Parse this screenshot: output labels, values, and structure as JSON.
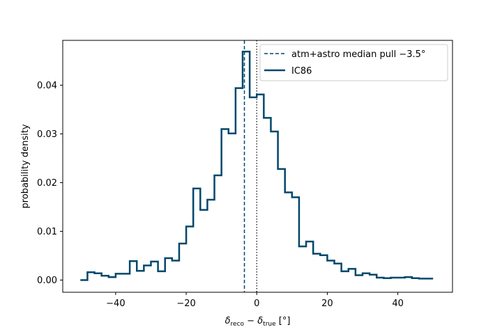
{
  "chart_data": {
    "type": "line",
    "xlabel": "δ_reco − δ_true  [°]",
    "ylabel": "probability density",
    "xlim": [
      -55,
      55.5
    ],
    "ylim": [
      -0.0025,
      0.0492
    ],
    "xticks": [
      -40,
      -20,
      0,
      20,
      40
    ],
    "xtick_labels": [
      "−40",
      "−20",
      "0",
      "20",
      "40"
    ],
    "yticks": [
      0.0,
      0.01,
      0.02,
      0.03,
      0.04
    ],
    "ytick_labels": [
      "0.00",
      "0.01",
      "0.02",
      "0.03",
      "0.04"
    ],
    "grid": false,
    "legend_position": "top-right",
    "bin_edges": [
      -50,
      -48,
      -46,
      -44,
      -42,
      -40,
      -38,
      -36,
      -34,
      -32,
      -30,
      -28,
      -26,
      -24,
      -22,
      -20,
      -18,
      -16,
      -14,
      -12,
      -10,
      -8,
      -6,
      -4,
      -2,
      0,
      2,
      4,
      6,
      8,
      10,
      12,
      14,
      16,
      18,
      20,
      22,
      24,
      26,
      28,
      30,
      32,
      34,
      36,
      38,
      40,
      42,
      44,
      46,
      48,
      50
    ],
    "series": [
      {
        "name": "IC86",
        "style": "step",
        "color": "#00476b",
        "values": [
          0.0,
          0.0016,
          0.0014,
          0.0009,
          0.0006,
          0.0013,
          0.0013,
          0.0039,
          0.0019,
          0.003,
          0.0038,
          0.0018,
          0.0045,
          0.004,
          0.0075,
          0.011,
          0.0188,
          0.0144,
          0.0165,
          0.0215,
          0.031,
          0.0301,
          0.0394,
          0.0469,
          0.0375,
          0.0381,
          0.0333,
          0.0305,
          0.0228,
          0.018,
          0.017,
          0.0069,
          0.0079,
          0.0054,
          0.0051,
          0.004,
          0.0034,
          0.0018,
          0.0023,
          0.001,
          0.0014,
          0.0011,
          0.0005,
          0.0004,
          0.0005,
          0.0005,
          0.0006,
          0.0004,
          0.0003,
          0.0003
        ]
      }
    ],
    "vlines": [
      {
        "name": "atm+astro median pull −3.5°",
        "x": -3.5,
        "style": "dashed",
        "color": "#00476b"
      },
      {
        "x": 0,
        "style": "dotted",
        "color": "#000000"
      }
    ]
  }
}
